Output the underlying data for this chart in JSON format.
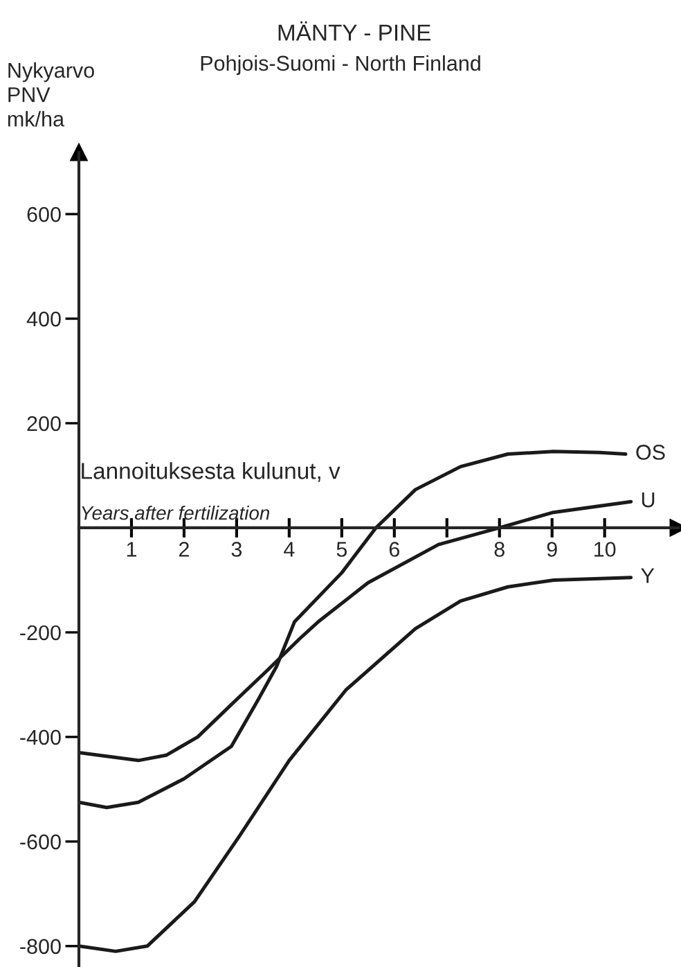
{
  "chart_data": {
    "type": "line",
    "title": "MÄNTY - PINE",
    "subtitle": "Pohjois-Suomi - North Finland",
    "ylabel": "Nykyarvo\nPNV\nmk/ha",
    "xlabel": "Lannoituksesta kulunut, v",
    "annotations": [
      "Years after fertilization"
    ],
    "xlim": [
      0,
      11.4
    ],
    "ylim": [
      -840,
      718
    ],
    "xticks": [
      1,
      2,
      3,
      4,
      5,
      6,
      {
        "value": 7,
        "label": null
      },
      8,
      9,
      10
    ],
    "yticks": [
      -800,
      -600,
      -400,
      -200,
      200,
      400,
      600
    ],
    "grid": false,
    "legend": false,
    "marker": "none",
    "line_style": "solid",
    "series": [
      {
        "name": "OS",
        "color": "#1a1a1a",
        "x": [
          0,
          0.53,
          1.13,
          2.0,
          2.9,
          3.42,
          3.76,
          4.1,
          5.0,
          5.65,
          6.4,
          7.26,
          8.16,
          9.03,
          9.9,
          10.4
        ],
        "values": [
          -525,
          -535,
          -525,
          -480,
          -418,
          -327,
          -265,
          -180,
          -86,
          0,
          73,
          117,
          141,
          146,
          144,
          141
        ]
      },
      {
        "name": "U",
        "color": "#1a1a1a",
        "x": [
          0,
          1.13,
          1.66,
          2.26,
          2.9,
          3.58,
          4.2,
          4.55,
          5.5,
          6.84,
          8.0,
          9.0,
          10.5
        ],
        "values": [
          -430,
          -445,
          -435,
          -400,
          -338,
          -273,
          -212,
          -180,
          -105,
          -32,
          0,
          29,
          50
        ]
      },
      {
        "name": "Y",
        "color": "#1a1a1a",
        "x": [
          0,
          0.7,
          1.3,
          2.2,
          3.05,
          4.0,
          5.08,
          6.4,
          7.26,
          8.16,
          9.03,
          10.5
        ],
        "values": [
          -800,
          -810,
          -800,
          -715,
          -590,
          -445,
          -310,
          -193,
          -140,
          -113,
          -100,
          -95
        ]
      }
    ]
  }
}
